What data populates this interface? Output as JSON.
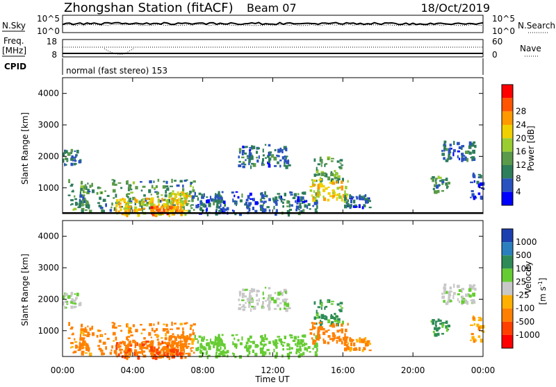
{
  "header": {
    "station_title": "Zhongshan Station (fitACF)",
    "beam": "Beam 07",
    "date": "18/Oct/2019"
  },
  "top_panels": {
    "nsky_label": "N.Sky",
    "nsky_tick_top": "10^5",
    "nsky_tick_bottom": "10^0",
    "nsearch_label": "N.Search",
    "nsearch_tick_top": "10^5",
    "nsearch_tick_bottom": "10^0",
    "freq_label": "Freq.",
    "freq_unit": "[MHz]",
    "freq_tick_top": "18",
    "freq_tick_bottom": "8",
    "nave_label": "Nave",
    "nave_tick_top": "60",
    "nave_tick_bottom": "0",
    "cpid_label": "CPID",
    "cpid_value": "normal (fast stereo) 153"
  },
  "axes": {
    "ylabel": "Slant Range [km]",
    "y_ticks": [
      "1000",
      "2000",
      "3000",
      "4000"
    ],
    "xlabel": "Time UT",
    "x_ticks": [
      "00:00",
      "04:00",
      "08:00",
      "12:00",
      "16:00",
      "20:00",
      "00:00"
    ]
  },
  "colorbars": {
    "power_label": "Power [dB]",
    "power_ticks": [
      "4",
      "8",
      "12",
      "16",
      "20",
      "24",
      "28"
    ],
    "power_colors": [
      "#0000ff",
      "#2a52be",
      "#2e7d5b",
      "#5a9a4a",
      "#9acd32",
      "#f0d000",
      "#ff9900",
      "#ff5500",
      "#ff0000"
    ],
    "velocity_label": "Velocity",
    "velocity_unit": "[m s",
    "velocity_unit_exp": "-1",
    "velocity_unit_end": "]",
    "velocity_ticks": [
      "1000",
      "500",
      "100",
      "25",
      "-25",
      "-100",
      "-500",
      "-1000"
    ],
    "velocity_colors": [
      "#1c3fb0",
      "#2a7fbf",
      "#2e8b57",
      "#66cc33",
      "#c8c8c8",
      "#ffb000",
      "#ff8000",
      "#ff4000",
      "#ff0000"
    ]
  },
  "chart_data": {
    "type": "heatmap",
    "x_range_hours": [
      0,
      24
    ],
    "y_range_km": [
      180,
      4500
    ],
    "patches": [
      {
        "t0": 0.0,
        "t1": 1.0,
        "r0": 1750,
        "r1": 2250,
        "power": 10,
        "velocity": 15
      },
      {
        "t0": 0.3,
        "t1": 7.5,
        "r0": 300,
        "r1": 1300,
        "power": 12,
        "velocity": -150
      },
      {
        "t0": 3.0,
        "t1": 7.0,
        "r0": 180,
        "r1": 700,
        "power": 22,
        "velocity": -400
      },
      {
        "t0": 5.0,
        "t1": 6.8,
        "r0": 180,
        "r1": 450,
        "power": 28,
        "velocity": -600
      },
      {
        "t0": 6.0,
        "t1": 7.3,
        "r0": 500,
        "r1": 900,
        "power": 20,
        "velocity": -250
      },
      {
        "t0": 7.5,
        "t1": 14.5,
        "r0": 200,
        "r1": 900,
        "power": 8,
        "velocity": 60
      },
      {
        "t0": 10.0,
        "t1": 13.0,
        "r0": 1700,
        "r1": 2400,
        "power": 8,
        "velocity": 10
      },
      {
        "t0": 14.3,
        "t1": 16.0,
        "r0": 1200,
        "r1": 2000,
        "power": 14,
        "velocity": 120
      },
      {
        "t0": 14.0,
        "t1": 16.3,
        "r0": 600,
        "r1": 1300,
        "power": 22,
        "velocity": -300
      },
      {
        "t0": 16.0,
        "t1": 17.5,
        "r0": 400,
        "r1": 800,
        "power": 6,
        "velocity": -120
      },
      {
        "t0": 21.5,
        "t1": 23.5,
        "r0": 1900,
        "r1": 2500,
        "power": 8,
        "velocity": 10
      },
      {
        "t0": 21.0,
        "t1": 22.0,
        "r0": 900,
        "r1": 1400,
        "power": 12,
        "velocity": 150
      },
      {
        "t0": 23.2,
        "t1": 24.0,
        "r0": 700,
        "r1": 1500,
        "power": 6,
        "velocity": -80
      }
    ]
  }
}
